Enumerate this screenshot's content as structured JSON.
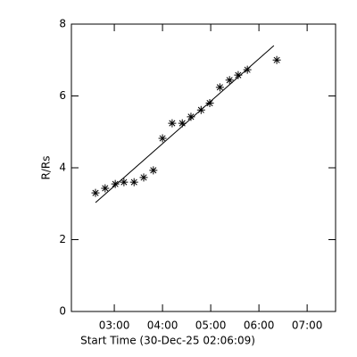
{
  "chart_data": {
    "type": "scatter",
    "xlabel": "Start Time (30-Dec-25 02:06:09)",
    "ylabel": "R/Rs",
    "x": [
      2.61,
      2.81,
      3.02,
      3.2,
      3.41,
      3.61,
      3.81,
      4.0,
      4.2,
      4.41,
      4.59,
      4.8,
      4.98,
      5.19,
      5.39,
      5.57,
      5.76,
      6.37
    ],
    "values": [
      3.3,
      3.43,
      3.55,
      3.6,
      3.6,
      3.73,
      3.93,
      4.82,
      5.24,
      5.24,
      5.42,
      5.61,
      5.8,
      6.24,
      6.44,
      6.58,
      6.73,
      7.0
    ],
    "fit": {
      "x": [
        2.61,
        6.31
      ],
      "y": [
        3.03,
        7.4
      ]
    },
    "color": "#000000",
    "xlim": [
      2.11,
      7.59
    ],
    "ylim": [
      0,
      8
    ],
    "xticks": [
      {
        "value": 3,
        "label": "03:00"
      },
      {
        "value": 4,
        "label": "04:00"
      },
      {
        "value": 5,
        "label": "05:00"
      },
      {
        "value": 6,
        "label": "06:00"
      },
      {
        "value": 7,
        "label": "07:00"
      }
    ],
    "yticks": [
      0,
      2,
      4,
      6,
      8
    ]
  }
}
